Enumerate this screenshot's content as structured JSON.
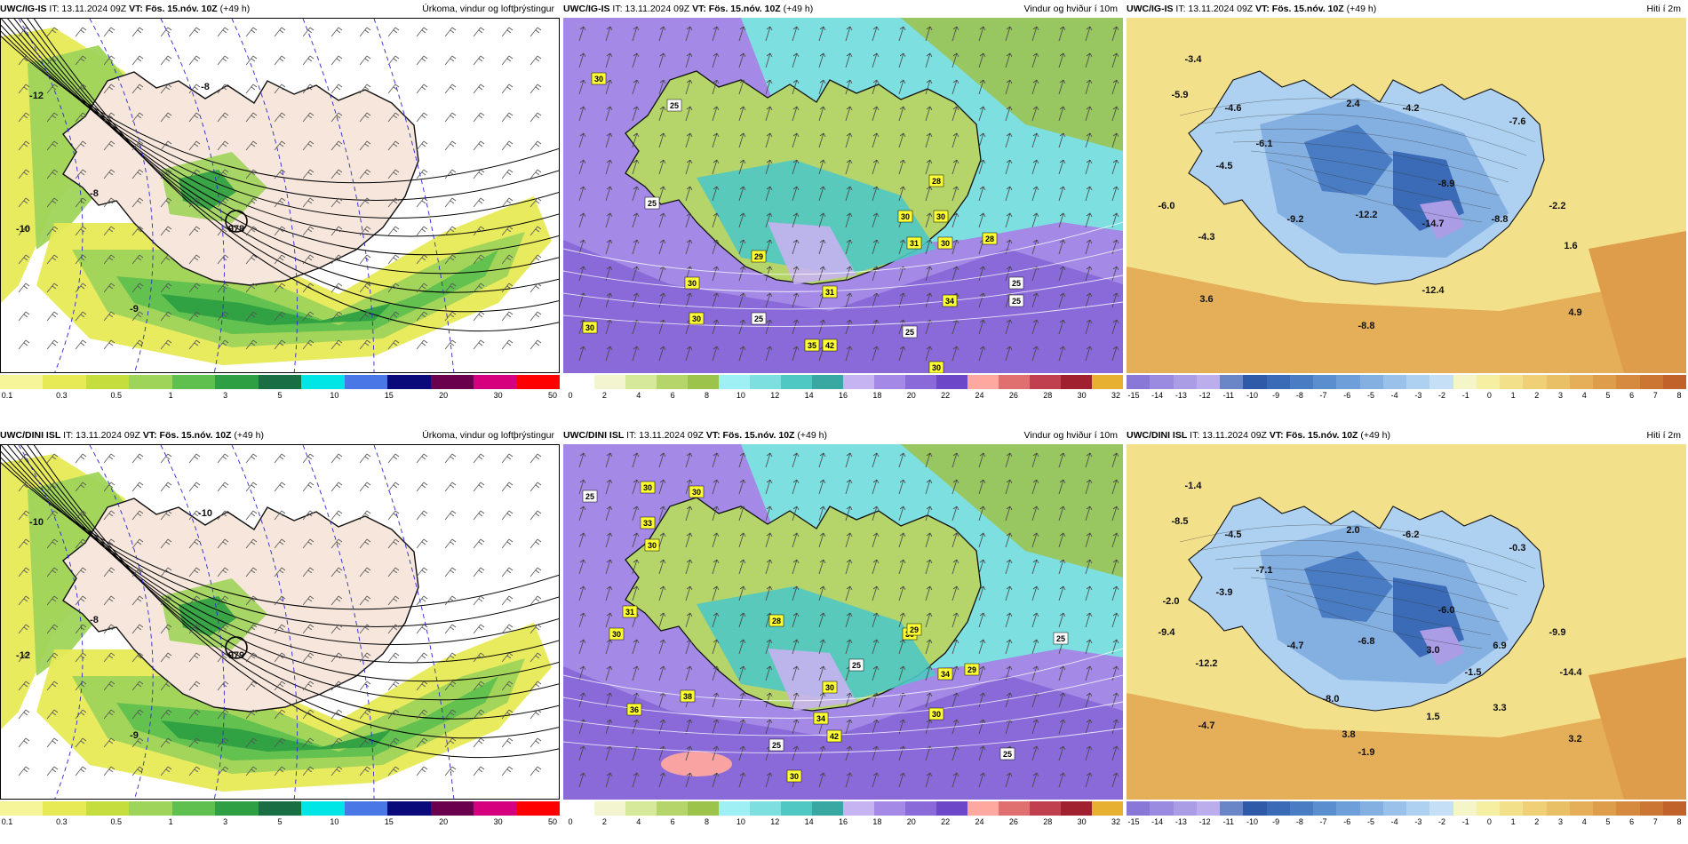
{
  "panels": [
    {
      "id": "top-precip",
      "model": "UWC/IG-IS",
      "it": "IT: 13.11.2024 09Z",
      "vt": "VT: Fös. 15.nóv. 10Z",
      "lead": "(+49 h)",
      "title": "Úrkoma, vindur og loftþrýstingur",
      "legend_ticks": [
        "0.1",
        "0.3",
        "0.5",
        "1",
        "3",
        "5",
        "10",
        "15",
        "20",
        "30",
        "50"
      ],
      "legend_colors": [
        "#f6f59a",
        "#e7ea55",
        "#c5dd3d",
        "#9fd45a",
        "#5fc04f",
        "#2ea043",
        "#1a6e43",
        "#00e5e5",
        "#4a77e6",
        "#0a0a7a",
        "#6a004d",
        "#d6007f",
        "#ff0000"
      ],
      "labels": [
        "978",
        "-8",
        "-10",
        "-12",
        "-8",
        "-9"
      ]
    },
    {
      "id": "top-wind",
      "model": "UWC/IG-IS",
      "it": "IT: 13.11.2024 09Z",
      "vt": "VT: Fös. 15.nóv. 10Z",
      "lead": "(+49 h)",
      "title": "Vindur og hviður í 10m",
      "legend_ticks": [
        "0",
        "2",
        "4",
        "6",
        "8",
        "10",
        "12",
        "14",
        "16",
        "18",
        "20",
        "22",
        "24",
        "26",
        "28",
        "30",
        "32"
      ],
      "legend_colors": [
        "#ffffff",
        "#f2f5cf",
        "#d6e89a",
        "#b5d56a",
        "#9cc34b",
        "#9ff0f4",
        "#7ddfe0",
        "#4fc8c4",
        "#3aa8a2",
        "#c6b3f2",
        "#a48ae6",
        "#8a6ad8",
        "#6c48c8",
        "#ffa8a0",
        "#e07070",
        "#c04050",
        "#a02030",
        "#e8b030"
      ],
      "labels": [
        "30",
        "25",
        "25",
        "28",
        "30",
        "30",
        "31",
        "30",
        "25",
        "29",
        "34",
        "31",
        "35",
        "42",
        "30",
        "30",
        "25",
        "28",
        "25",
        "30",
        "25",
        "30"
      ]
    },
    {
      "id": "top-temp",
      "model": "UWC/IG-IS",
      "it": "IT: 13.11.2024 09Z",
      "vt": "VT: Fös. 15.nóv. 10Z",
      "lead": "(+49 h)",
      "title": "Hiti í 2m",
      "legend_ticks": [
        "-15",
        "-14",
        "-13",
        "-12",
        "-11",
        "-10",
        "-9",
        "-8",
        "-7",
        "-6",
        "-5",
        "-4",
        "-3",
        "-2",
        "-1",
        "0",
        "1",
        "2",
        "3",
        "4",
        "5",
        "6",
        "7",
        "8"
      ],
      "legend_colors": [
        "#8a78d8",
        "#9a8ae0",
        "#ab9ce6",
        "#bcaeec",
        "#6b86c6",
        "#2e5aa8",
        "#3b6bb6",
        "#4a7cc3",
        "#5b8ecf",
        "#6f9fd8",
        "#84b0e1",
        "#99c1ea",
        "#afd1f1",
        "#c5e0f6",
        "#f4f6c8",
        "#f6eea0",
        "#f3e08a",
        "#efd077",
        "#eac066",
        "#e4af58",
        "#dd9d4b",
        "#d58a3f",
        "#cc7634",
        "#c0622a"
      ],
      "labels": [
        "-3.4",
        "-5.9",
        "-4.6",
        "2.4",
        "-4.2",
        "-7.6",
        "-6.1",
        "-4.5",
        "-8.9",
        "-6.0",
        "-9.2",
        "-12.2",
        "-14.7",
        "-8.8",
        "-2.2",
        "-4.3",
        "1.6",
        "-12.4",
        "3.6",
        "-8.8",
        "4.9"
      ]
    },
    {
      "id": "bot-precip",
      "model": "UWC/DINI ISL",
      "it": "IT: 13.11.2024 09Z",
      "vt": "VT: Fös. 15.nóv. 10Z",
      "lead": "(+49 h)",
      "title": "Úrkoma, vindur og loftþrýstingur",
      "legend_ticks": [
        "0.1",
        "0.3",
        "0.5",
        "1",
        "3",
        "5",
        "10",
        "15",
        "20",
        "30",
        "50"
      ],
      "legend_colors": [
        "#f6f59a",
        "#e7ea55",
        "#c5dd3d",
        "#9fd45a",
        "#5fc04f",
        "#2ea043",
        "#1a6e43",
        "#00e5e5",
        "#4a77e6",
        "#0a0a7a",
        "#6a004d",
        "#d6007f",
        "#ff0000"
      ],
      "labels": [
        "979",
        "-10",
        "-12",
        "-10",
        "-8",
        "-9"
      ]
    },
    {
      "id": "bot-wind",
      "model": "UWC/DINI ISL",
      "it": "IT: 13.11.2024 09Z",
      "vt": "VT: Fös. 15.nóv. 10Z",
      "lead": "(+49 h)",
      "title": "Vindur og hviður í 10m",
      "legend_ticks": [
        "0",
        "2",
        "4",
        "6",
        "8",
        "10",
        "12",
        "14",
        "16",
        "18",
        "20",
        "22",
        "24",
        "26",
        "28",
        "30",
        "32"
      ],
      "legend_colors": [
        "#ffffff",
        "#f2f5cf",
        "#d6e89a",
        "#b5d56a",
        "#9cc34b",
        "#9ff0f4",
        "#7ddfe0",
        "#4fc8c4",
        "#3aa8a2",
        "#c6b3f2",
        "#a48ae6",
        "#8a6ad8",
        "#6c48c8",
        "#ffa8a0",
        "#e07070",
        "#c04050",
        "#a02030",
        "#e8b030"
      ],
      "labels": [
        "30",
        "30",
        "25",
        "33",
        "30",
        "31",
        "30",
        "28",
        "30",
        "29",
        "25",
        "34",
        "29",
        "25",
        "38",
        "36",
        "30",
        "34",
        "42",
        "25",
        "30",
        "25",
        "30"
      ]
    },
    {
      "id": "bot-temp",
      "model": "UWC/DINI ISL",
      "it": "IT: 13.11.2024 09Z",
      "vt": "VT: Fös. 15.nóv. 10Z",
      "lead": "(+49 h)",
      "title": "Hiti í 2m",
      "legend_ticks": [
        "-15",
        "-14",
        "-13",
        "-12",
        "-11",
        "-10",
        "-9",
        "-8",
        "-7",
        "-6",
        "-5",
        "-4",
        "-3",
        "-2",
        "-1",
        "0",
        "1",
        "2",
        "3",
        "4",
        "5",
        "6",
        "7",
        "8"
      ],
      "legend_colors": [
        "#8a78d8",
        "#9a8ae0",
        "#ab9ce6",
        "#bcaeec",
        "#6b86c6",
        "#2e5aa8",
        "#3b6bb6",
        "#4a7cc3",
        "#5b8ecf",
        "#6f9fd8",
        "#84b0e1",
        "#99c1ea",
        "#afd1f1",
        "#c5e0f6",
        "#f4f6c8",
        "#f6eea0",
        "#f3e08a",
        "#efd077",
        "#eac066",
        "#e4af58",
        "#dd9d4b",
        "#d58a3f",
        "#cc7634",
        "#c0622a"
      ],
      "labels": [
        "-1.4",
        "-8.5",
        "-4.5",
        "2.0",
        "-6.2",
        "-0.3",
        "-7.1",
        "-3.9",
        "-6.0",
        "-9.4",
        "-4.7",
        "-6.8",
        "3.0",
        "6.9",
        "-9.9",
        "-12.2",
        "-14.4",
        "1.5",
        "-4.7",
        "-1.9",
        "3.2",
        "-2.0",
        "-1.5",
        "-8.0",
        "3.3",
        "3.8"
      ]
    }
  ]
}
